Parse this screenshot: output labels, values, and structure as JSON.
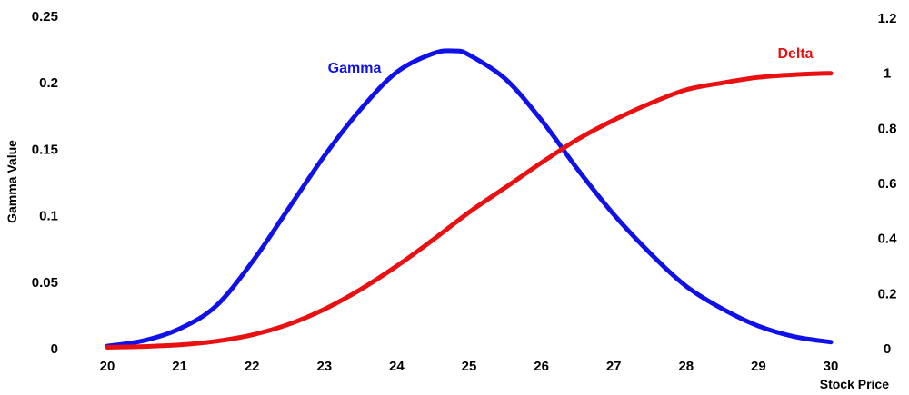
{
  "chart_data": {
    "type": "line",
    "xlabel": "Stock Price",
    "ylabel": "Gamma Value",
    "x_ticks": [
      "20",
      "21",
      "22",
      "23",
      "24",
      "25",
      "26",
      "27",
      "28",
      "29",
      "30"
    ],
    "y_left_ticks": [
      "0",
      "0.05",
      "0.1",
      "0.15",
      "0.2",
      "0.25"
    ],
    "y_right_ticks": [
      "0",
      "0.2",
      "0.4",
      "0.6",
      "0.8",
      "1",
      "1.2"
    ],
    "xlim": [
      20,
      30
    ],
    "ylim_left": [
      0,
      0.25
    ],
    "ylim_right": [
      0,
      1.2
    ],
    "grid": false,
    "legend": "none",
    "series": [
      {
        "name": "Gamma",
        "axis": "left",
        "color": "#1010e8",
        "x": [
          20,
          20.5,
          21,
          21.5,
          22,
          22.5,
          23,
          23.5,
          24,
          24.5,
          24.8,
          25,
          25.5,
          26,
          26.5,
          27,
          27.5,
          28,
          28.5,
          29,
          29.5,
          30
        ],
        "y": [
          0.002,
          0.006,
          0.015,
          0.032,
          0.065,
          0.105,
          0.145,
          0.18,
          0.208,
          0.222,
          0.224,
          0.221,
          0.203,
          0.172,
          0.135,
          0.101,
          0.072,
          0.047,
          0.03,
          0.017,
          0.009,
          0.005
        ]
      },
      {
        "name": "Delta",
        "axis": "right",
        "color": "#e81010",
        "x": [
          20,
          20.5,
          21,
          21.5,
          22,
          22.5,
          23,
          23.5,
          24,
          24.5,
          25,
          25.5,
          26,
          26.5,
          27,
          27.5,
          28,
          28.5,
          29,
          29.5,
          30
        ],
        "y": [
          0.005,
          0.008,
          0.014,
          0.027,
          0.05,
          0.088,
          0.143,
          0.215,
          0.3,
          0.395,
          0.495,
          0.585,
          0.675,
          0.76,
          0.83,
          0.89,
          0.94,
          0.965,
          0.985,
          0.995,
          1.0
        ]
      }
    ]
  }
}
